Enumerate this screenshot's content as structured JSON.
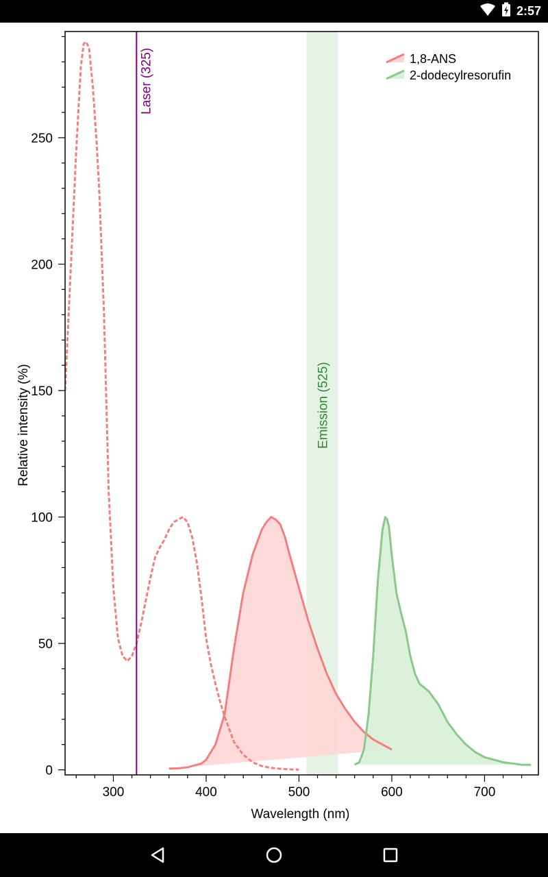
{
  "status_bar": {
    "time": "2:57",
    "icons": [
      "wifi-icon",
      "battery-charging-icon"
    ]
  },
  "nav_bar": {
    "buttons": [
      "back-icon",
      "home-icon",
      "recents-icon"
    ]
  },
  "colors": {
    "ans": "#f08080",
    "ans_fill": "#ffd6d6",
    "dodecyl": "#8cc88c",
    "dodecyl_fill": "#d8f0d8",
    "laser": "#800080",
    "emission_band": "#e6f2e6",
    "emission_text": "#2e8b2e"
  },
  "chart_data": {
    "type": "line",
    "xlabel": "Wavelength (nm)",
    "ylabel": "Relative intensity (%)",
    "xlim": [
      248,
      758
    ],
    "ylim": [
      -2,
      292
    ],
    "x_ticks": [
      300,
      400,
      500,
      600,
      700
    ],
    "y_ticks": [
      0,
      50,
      100,
      150,
      200,
      250
    ],
    "grid": false,
    "legend_position": "top-right",
    "legend": [
      {
        "name": "1,8-ANS",
        "color": "#f08080"
      },
      {
        "name": "2-dodecylresorufin",
        "color": "#8cc88c"
      }
    ],
    "annotations": {
      "laser": {
        "label": "Laser (325)",
        "x": 325
      },
      "emission": {
        "label": "Emission (525)",
        "center": 525,
        "from": 508,
        "to": 542
      }
    },
    "series": [
      {
        "name": "1,8-ANS",
        "kind": "excitation",
        "style": "dashed",
        "x": [
          248,
          255,
          260,
          265,
          268,
          270,
          272,
          274,
          278,
          282,
          285,
          290,
          295,
          300,
          305,
          310,
          315,
          320,
          325,
          330,
          335,
          340,
          345,
          350,
          355,
          360,
          365,
          370,
          375,
          380,
          385,
          390,
          395,
          400,
          405,
          410,
          415,
          420,
          425,
          430,
          440,
          450,
          460,
          470,
          480,
          490,
          500
        ],
        "y": [
          150,
          205,
          245,
          278,
          287,
          288,
          287,
          285,
          270,
          248,
          228,
          180,
          110,
          72,
          52,
          45,
          43,
          45,
          50,
          58,
          67,
          76,
          84,
          88,
          91,
          95,
          98,
          99,
          100,
          98,
          92,
          82,
          68,
          52,
          42,
          34,
          27,
          21,
          16,
          11,
          6,
          3,
          1.5,
          0.8,
          0.4,
          0.2,
          0.1
        ]
      },
      {
        "name": "1,8-ANS",
        "kind": "emission",
        "style": "solid-filled",
        "x": [
          360,
          370,
          380,
          390,
          395,
          400,
          410,
          420,
          425,
          430,
          440,
          450,
          460,
          465,
          470,
          475,
          480,
          485,
          490,
          500,
          510,
          520,
          530,
          540,
          550,
          560,
          570,
          580,
          590,
          600
        ],
        "y": [
          0.5,
          0.6,
          1,
          2,
          2.5,
          4,
          10,
          22,
          35,
          48,
          70,
          85,
          95,
          98,
          100,
          99,
          97,
          92,
          85,
          72,
          59,
          48,
          38,
          30,
          24,
          19,
          15,
          12,
          10,
          8
        ]
      },
      {
        "name": "2-dodecylresorufin",
        "kind": "emission",
        "style": "solid-filled",
        "x": [
          560,
          565,
          570,
          575,
          580,
          585,
          590,
          593,
          595,
          597,
          600,
          605,
          610,
          615,
          620,
          625,
          630,
          640,
          650,
          660,
          670,
          680,
          690,
          700,
          720,
          740,
          750
        ],
        "y": [
          2,
          3,
          8,
          22,
          45,
          75,
          95,
          100,
          99,
          96,
          85,
          70,
          62,
          55,
          45,
          38,
          34,
          31,
          26,
          19,
          14,
          10,
          7,
          5,
          3,
          2,
          2
        ]
      }
    ]
  }
}
